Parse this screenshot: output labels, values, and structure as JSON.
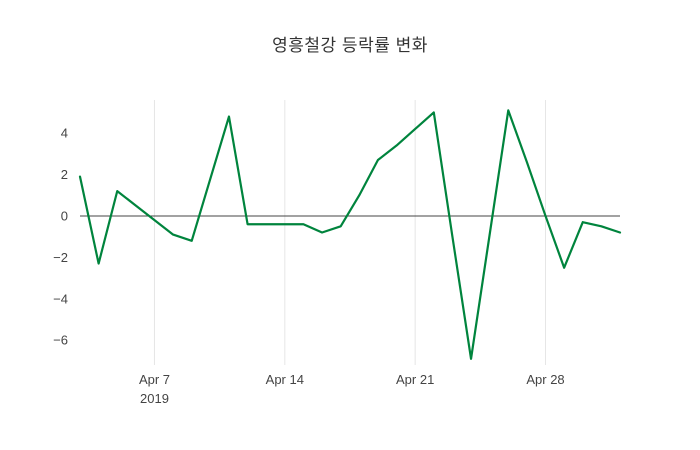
{
  "chart_data": {
    "type": "line",
    "title": "영흥철강 등락률 변화",
    "x": [
      "2019-04-03",
      "2019-04-04",
      "2019-04-05",
      "2019-04-06",
      "2019-04-07",
      "2019-04-08",
      "2019-04-09",
      "2019-04-10",
      "2019-04-11",
      "2019-04-12",
      "2019-04-13",
      "2019-04-14",
      "2019-04-15",
      "2019-04-16",
      "2019-04-17",
      "2019-04-18",
      "2019-04-19",
      "2019-04-20",
      "2019-04-21",
      "2019-04-22",
      "2019-04-23",
      "2019-04-24",
      "2019-04-25",
      "2019-04-26",
      "2019-04-27",
      "2019-04-28",
      "2019-04-29",
      "2019-04-30",
      "2019-05-01",
      "2019-05-02"
    ],
    "values": [
      1.9,
      -2.3,
      1.2,
      0.5,
      -0.2,
      -0.9,
      -1.2,
      1.8,
      4.8,
      -0.4,
      -0.4,
      -0.4,
      -0.4,
      -0.8,
      -0.5,
      1.0,
      2.7,
      3.4,
      4.2,
      5.0,
      -1.0,
      -6.9,
      -0.9,
      5.1,
      2.6,
      0.0,
      -2.5,
      -0.3,
      -0.5,
      -0.8
    ],
    "ylim": [
      -7.2,
      5.6
    ],
    "y_ticks": [
      {
        "value": 4,
        "label": "4"
      },
      {
        "value": 2,
        "label": "2"
      },
      {
        "value": 0,
        "label": "0"
      },
      {
        "value": -2,
        "label": "−2"
      },
      {
        "value": -4,
        "label": "−4"
      },
      {
        "value": -6,
        "label": "−6"
      }
    ],
    "x_ticks": [
      {
        "date": "2019-04-07",
        "label": "Apr 7",
        "sub": "2019"
      },
      {
        "date": "2019-04-14",
        "label": "Apr 14",
        "sub": ""
      },
      {
        "date": "2019-04-21",
        "label": "Apr 21",
        "sub": ""
      },
      {
        "date": "2019-04-28",
        "label": "Apr 28",
        "sub": ""
      }
    ],
    "grid": "vertical-only",
    "legend": "none",
    "xlabel": "",
    "ylabel": ""
  },
  "colors": {
    "line": "#00843d",
    "grid": "#e6e6e6",
    "zero_line": "#444444",
    "tick_text": "#444444",
    "title_text": "#333333",
    "background": "#ffffff"
  }
}
